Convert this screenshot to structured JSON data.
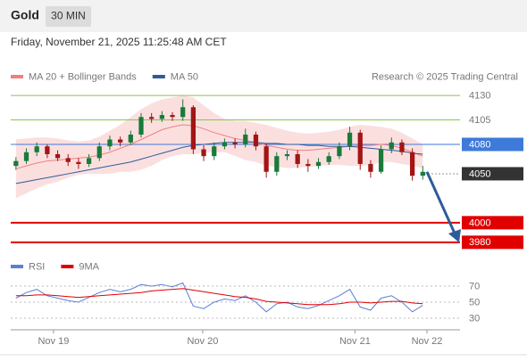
{
  "header": {
    "title": "Gold",
    "interval": "30 MIN",
    "datetime": "Friday, November 21, 2025 11:25:48 AM CET"
  },
  "chart_data": [
    {
      "type": "candlestick",
      "source": "Research © 2025 Trading Central",
      "ylim": [
        3968,
        4141
      ],
      "xlim": [
        -0.5,
        40
      ],
      "up_color": "#1a7a3a",
      "down_color": "#a31515",
      "open": [
        4058,
        4063,
        4072,
        4078,
        4070,
        4066,
        4062,
        4060,
        4066,
        4078,
        4085,
        4082,
        4090,
        4108,
        4106,
        4110,
        4108,
        4118,
        4075,
        4068,
        4078,
        4082,
        4080,
        4090,
        4078,
        4052,
        4068,
        4070,
        4060,
        4058,
        4062,
        4068,
        4078,
        4092,
        4060,
        4052,
        4075,
        4082,
        4072,
        4048
      ],
      "high": [
        4067,
        4076,
        4082,
        4080,
        4074,
        4070,
        4066,
        4070,
        4082,
        4089,
        4088,
        4094,
        4112,
        4112,
        4114,
        4113,
        4126,
        4120,
        4079,
        4082,
        4086,
        4086,
        4096,
        4093,
        4081,
        4072,
        4074,
        4074,
        4065,
        4066,
        4072,
        4082,
        4098,
        4095,
        4064,
        4079,
        4087,
        4085,
        4076,
        4058
      ],
      "low": [
        4054,
        4060,
        4068,
        4066,
        4063,
        4058,
        4055,
        4057,
        4063,
        4074,
        4078,
        4079,
        4087,
        4102,
        4103,
        4104,
        4104,
        4070,
        4063,
        4064,
        4075,
        4076,
        4077,
        4074,
        4046,
        4048,
        4064,
        4056,
        4052,
        4055,
        4059,
        4065,
        4074,
        4054,
        4046,
        4050,
        4071,
        4069,
        4043,
        4044
      ],
      "close": [
        4063,
        4072,
        4078,
        4070,
        4066,
        4062,
        4060,
        4066,
        4078,
        4085,
        4082,
        4090,
        4108,
        4106,
        4110,
        4108,
        4118,
        4075,
        4068,
        4078,
        4082,
        4080,
        4090,
        4078,
        4052,
        4068,
        4070,
        4060,
        4058,
        4062,
        4068,
        4078,
        4092,
        4060,
        4052,
        4075,
        4082,
        4072,
        4048,
        4052
      ],
      "overlays": [
        {
          "name": "MA 20 + Bollinger Bands",
          "color": "#f08080",
          "values": [
            4055,
            4058,
            4061,
            4063,
            4064,
            4065,
            4066,
            4067,
            4069,
            4072,
            4076,
            4080,
            4085,
            4090,
            4095,
            4098,
            4100,
            4099,
            4096,
            4092,
            4089,
            4086,
            4084,
            4082,
            4079,
            4077,
            4075,
            4074,
            4074,
            4075,
            4076,
            4077,
            4078,
            4079,
            4079,
            4080,
            4079,
            4076,
            4072,
            4068
          ],
          "upper": [
            4085,
            4086,
            4087,
            4087,
            4086,
            4084,
            4083,
            4084,
            4088,
            4094,
            4100,
            4108,
            4116,
            4122,
            4126,
            4128,
            4130,
            4128,
            4120,
            4112,
            4106,
            4104,
            4104,
            4102,
            4100,
            4097,
            4094,
            4092,
            4091,
            4092,
            4093,
            4095,
            4098,
            4100,
            4099,
            4098,
            4096,
            4092,
            4086,
            4080
          ],
          "lower": [
            4025,
            4030,
            4035,
            4039,
            4042,
            4046,
            4049,
            4050,
            4050,
            4050,
            4052,
            4052,
            4054,
            4058,
            4064,
            4068,
            4070,
            4070,
            4072,
            4072,
            4072,
            4068,
            4064,
            4062,
            4058,
            4057,
            4056,
            4056,
            4057,
            4058,
            4059,
            4059,
            4058,
            4058,
            4059,
            4062,
            4062,
            4060,
            4058,
            4056
          ]
        },
        {
          "name": "MA 50",
          "color": "#2e5c9a",
          "values": [
            4040,
            4042,
            4044,
            4046,
            4048,
            4050,
            4052,
            4054,
            4056,
            4058,
            4060,
            4062,
            4065,
            4068,
            4071,
            4074,
            4077,
            4079,
            4080,
            4081,
            4082,
            4082,
            4082,
            4082,
            4081,
            4081,
            4080,
            4080,
            4079,
            4079,
            4078,
            4078,
            4078,
            4077,
            4076,
            4075,
            4074,
            4073,
            4071,
            4070
          ]
        }
      ],
      "levels": [
        {
          "value": 4130,
          "color": "#8bc34a",
          "style": "plain"
        },
        {
          "value": 4105,
          "color": "#8bc34a",
          "style": "plain"
        },
        {
          "value": 4080,
          "color": "#3d7ad9",
          "style": "box"
        },
        {
          "value": 4050,
          "color": "#333333",
          "style": "box-dotted"
        },
        {
          "value": 4000,
          "color": "#e00000",
          "style": "box"
        },
        {
          "value": 3980,
          "color": "#e00000",
          "style": "box"
        }
      ]
    },
    {
      "type": "line",
      "ylim": [
        20,
        80
      ],
      "yticks": [
        70,
        50,
        30
      ],
      "xlim": [
        -0.5,
        40
      ],
      "xticks": [
        {
          "value": 3.6,
          "label": "Nov 19"
        },
        {
          "value": 17.9,
          "label": "Nov 20"
        },
        {
          "value": 32.5,
          "label": "Nov 21"
        },
        {
          "value": 39.4,
          "label": "Nov 22"
        }
      ],
      "series": [
        {
          "name": "RSI",
          "color": "#5b7fd6",
          "values": [
            55,
            62,
            66,
            58,
            55,
            52,
            50,
            56,
            62,
            66,
            63,
            66,
            72,
            70,
            72,
            69,
            74,
            45,
            42,
            50,
            54,
            52,
            58,
            50,
            38,
            48,
            50,
            44,
            42,
            46,
            52,
            58,
            66,
            44,
            40,
            55,
            58,
            50,
            38,
            46
          ]
        },
        {
          "name": "9MA",
          "color": "#e00000",
          "values": [
            58,
            58,
            59,
            59,
            58,
            57,
            56,
            57,
            58,
            59,
            60,
            61,
            62,
            64,
            65,
            66,
            67,
            65,
            63,
            61,
            59,
            57,
            56,
            54,
            51,
            50,
            49,
            48,
            47,
            47,
            47,
            48,
            50,
            50,
            49,
            50,
            51,
            51,
            49,
            48
          ]
        }
      ]
    }
  ]
}
